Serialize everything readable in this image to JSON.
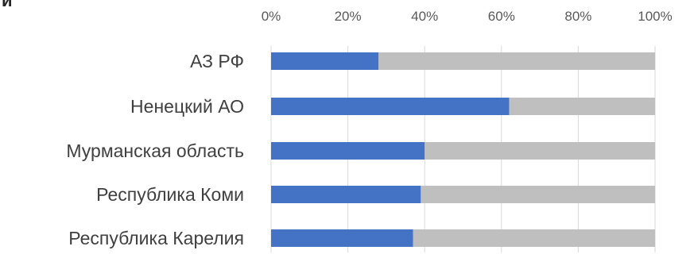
{
  "chart_data": {
    "type": "bar",
    "orientation": "horizontal",
    "stacked_percent": true,
    "categories": [
      "АЗ РФ",
      "Ненецкий АО",
      "Мурманская область",
      "Республика Коми",
      "Республика Карелия"
    ],
    "series": [
      {
        "values": [
          28,
          62,
          40,
          39,
          37
        ],
        "color": "#4472C4"
      },
      {
        "values": [
          72,
          38,
          60,
          61,
          63
        ],
        "color": "#BFBFBF"
      }
    ],
    "xlim": [
      0,
      100
    ],
    "x_ticks": [
      "0%",
      "20%",
      "40%",
      "60%",
      "80%",
      "100%"
    ],
    "gridlines": "vertical",
    "axis_position": "top"
  }
}
